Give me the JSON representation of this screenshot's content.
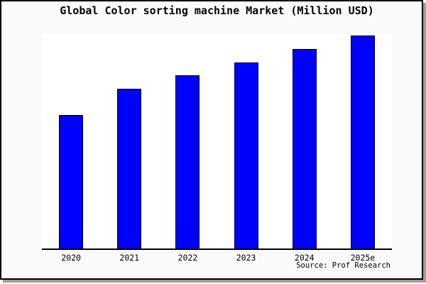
{
  "figure": {
    "title": "Global Color sorting machine Market (Million USD)",
    "source": "Source: Prof Research"
  },
  "chart_data": {
    "type": "bar",
    "title": "Global Color sorting machine Market (Million USD)",
    "categories": [
      "2020",
      "2021",
      "2022",
      "2023",
      "2024",
      "2025e"
    ],
    "values": [
      62.7,
      75.0,
      81.3,
      87.5,
      93.7,
      100.0
    ],
    "value_scale": "y-axis has no tick labels; values are relative bar heights with 2025e = 100",
    "xlabel": "",
    "ylabel": "",
    "ylim": [
      0,
      101
    ],
    "grid": false,
    "legend": false,
    "bar_color": "#0000ff",
    "bar_border_color": "#000000",
    "figure_background": "#fafafa",
    "plot_background": "#ffffff",
    "source": "Source: Prof Research"
  }
}
